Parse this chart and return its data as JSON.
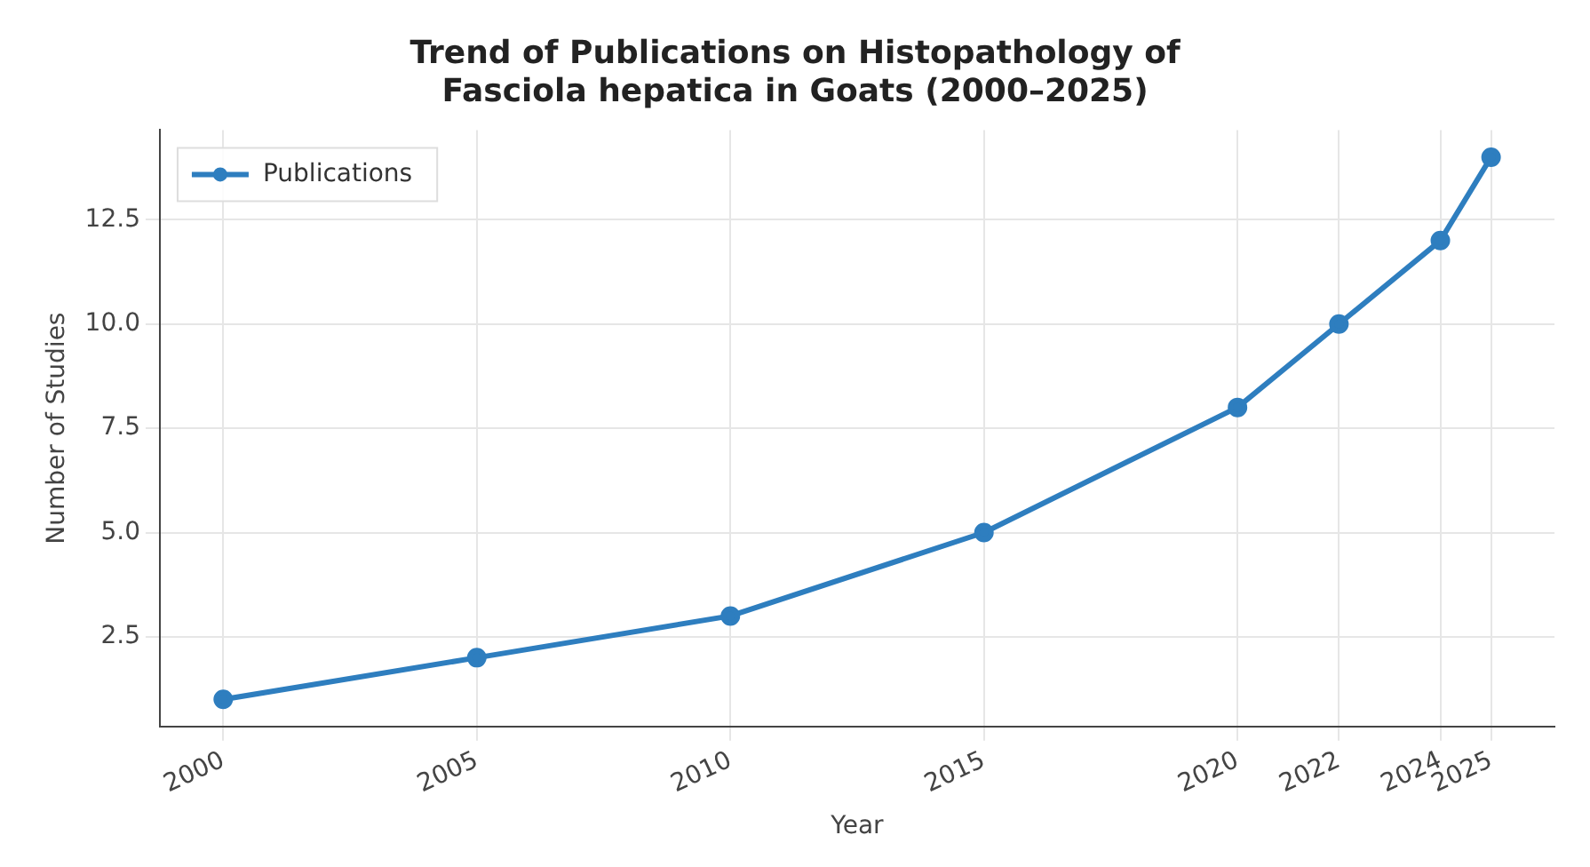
{
  "chart_data": {
    "type": "line",
    "title": "Trend of Publications on Histopathology of\nFasciola hepatica in Goats (2000–2025)",
    "xlabel": "Year",
    "ylabel": "Number of Studies",
    "x": [
      2000,
      2005,
      2010,
      2015,
      2020,
      2022,
      2024,
      2025
    ],
    "series": [
      {
        "name": "Publications",
        "color": "#2e7ebf",
        "values": [
          1,
          2,
          3,
          5,
          8,
          10,
          12,
          14
        ]
      }
    ],
    "xlim": [
      1998.75,
      2026.25
    ],
    "xticks": [
      2000,
      2005,
      2010,
      2015,
      2020,
      2022,
      2024,
      2025
    ],
    "ylim": [
      0.35,
      14.65
    ],
    "yticks": [
      {
        "value": 2.5,
        "label": "2.5"
      },
      {
        "value": 5,
        "label": "5.0"
      },
      {
        "value": 7.5,
        "label": "7.5"
      },
      {
        "value": 10,
        "label": "10.0"
      },
      {
        "value": 12.5,
        "label": "12.5"
      }
    ],
    "grid": true,
    "legend": "top left",
    "marker": "circle",
    "line_style": "solid"
  }
}
